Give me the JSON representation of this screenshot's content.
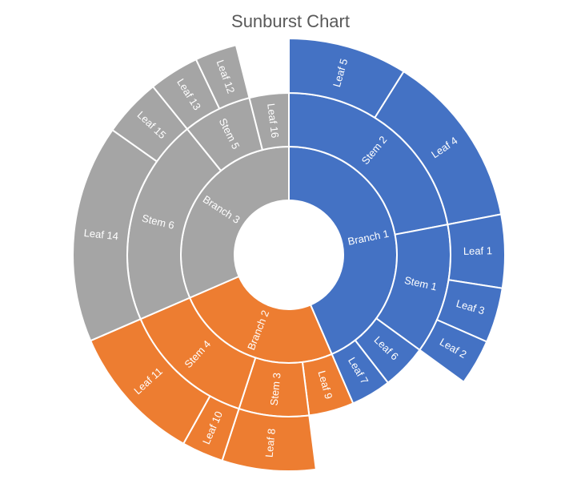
{
  "chart_data": {
    "type": "sunburst",
    "title": "Sunburst Chart",
    "colors": {
      "Branch 1": "#4472C4",
      "Branch 2": "#ED7D31",
      "Branch 3": "#A5A5A5",
      "separator": "#FFFFFF",
      "label_text": "#FFFFFF",
      "title_text": "#595959"
    },
    "hierarchy": [
      {
        "name": "Branch 1",
        "value": 43.5,
        "children": [
          {
            "name": "Stem 2",
            "value": 22,
            "children": [
              {
                "name": "Leaf 5",
                "value": 15
              },
              {
                "name": "Leaf 4",
                "value": 22
              }
            ]
          },
          {
            "name": "Stem 1",
            "value": 13,
            "children": [
              {
                "name": "Leaf 1",
                "value": 8
              },
              {
                "name": "Leaf 3",
                "value": 6
              },
              {
                "name": "Leaf 2",
                "value": 5
              }
            ]
          },
          {
            "name": "Leaf 6",
            "value": 4.5
          },
          {
            "name": "Leaf 7",
            "value": 4
          }
        ]
      },
      {
        "name": "Branch 2",
        "value": 25,
        "children": [
          {
            "name": "Leaf 9",
            "value": 4.5
          },
          {
            "name": "Stem 3",
            "value": 7,
            "children": [
              {
                "name": "Leaf 8",
                "value": 9
              }
            ]
          },
          {
            "name": "Stem 4",
            "value": 13.5,
            "children": [
              {
                "name": "Leaf 10",
                "value": 6
              },
              {
                "name": "Leaf 11",
                "value": 20
              }
            ]
          }
        ]
      },
      {
        "name": "Branch 3",
        "value": 31.5,
        "children": [
          {
            "name": "Stem 6",
            "value": 21,
            "children": [
              {
                "name": "Leaf 14",
                "value": 26
              },
              {
                "name": "Leaf 15",
                "value": 7
              }
            ]
          },
          {
            "name": "Stem 5",
            "value": 7,
            "children": [
              {
                "name": "Leaf 13",
                "value": 6
              },
              {
                "name": "Leaf 12",
                "value": 5
              }
            ]
          },
          {
            "name": "Leaf 16",
            "value": 4
          }
        ]
      }
    ]
  }
}
